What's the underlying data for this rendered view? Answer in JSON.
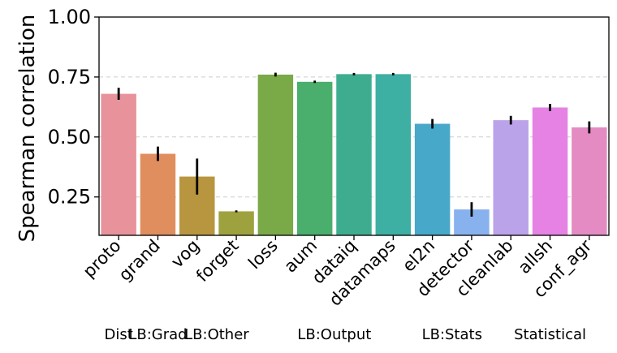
{
  "chart_data": {
    "type": "bar",
    "title": "",
    "xlabel": "",
    "ylabel": "Spearman correlation",
    "ylim": [
      0.09,
      1.0
    ],
    "yticks": [
      0.25,
      0.5,
      0.75,
      1.0
    ],
    "ytick_labels": [
      "0.25",
      "0.50",
      "0.75",
      "1.00"
    ],
    "grid": "horizontal dashed",
    "categories": [
      "proto",
      "grand",
      "vog",
      "forget",
      "loss",
      "aum",
      "dataiq",
      "datamaps",
      "el2n",
      "detector",
      "cleanlab",
      "allsh",
      "conf_agr"
    ],
    "values": [
      0.68,
      0.43,
      0.335,
      0.19,
      0.76,
      0.73,
      0.762,
      0.762,
      0.555,
      0.198,
      0.57,
      0.623,
      0.54
    ],
    "errors": [
      0.025,
      0.03,
      0.075,
      0.004,
      0.008,
      0.005,
      0.005,
      0.005,
      0.02,
      0.03,
      0.018,
      0.015,
      0.025
    ],
    "colors": [
      "#E8939B",
      "#E08E5E",
      "#B8953F",
      "#9DA23E",
      "#7AAA48",
      "#4AAE6C",
      "#3EAD8F",
      "#3DAFA3",
      "#47A8C9",
      "#88B2EE",
      "#BBA3EA",
      "#E682E4",
      "#E48BC4"
    ],
    "groups": [
      {
        "label": "Dist",
        "categories": [
          "proto"
        ]
      },
      {
        "label": "LB:Grad",
        "categories": [
          "grand"
        ]
      },
      {
        "label": "LB:Other",
        "categories": [
          "vog",
          "forget"
        ]
      },
      {
        "label": "LB:Output",
        "categories": [
          "loss",
          "aum",
          "dataiq",
          "datamaps"
        ]
      },
      {
        "label": "LB:Stats",
        "categories": [
          "el2n",
          "detector"
        ]
      },
      {
        "label": "Statistical",
        "categories": [
          "cleanlab",
          "allsh",
          "conf_agr"
        ]
      }
    ]
  }
}
